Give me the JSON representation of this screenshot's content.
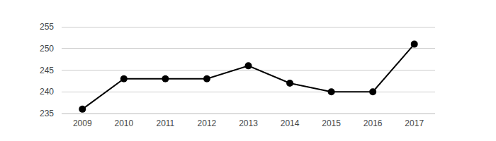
{
  "chart_data": {
    "type": "line",
    "categories": [
      "2009",
      "2010",
      "2011",
      "2012",
      "2013",
      "2014",
      "2015",
      "2016",
      "2017"
    ],
    "values": [
      236,
      243,
      243,
      243,
      246,
      242,
      240,
      240,
      251
    ],
    "color": "#000000",
    "marker": "circle",
    "line_style": "solid",
    "ylim": [
      235,
      255
    ],
    "yticks": [
      235,
      240,
      245,
      250,
      255
    ],
    "grid": true
  }
}
